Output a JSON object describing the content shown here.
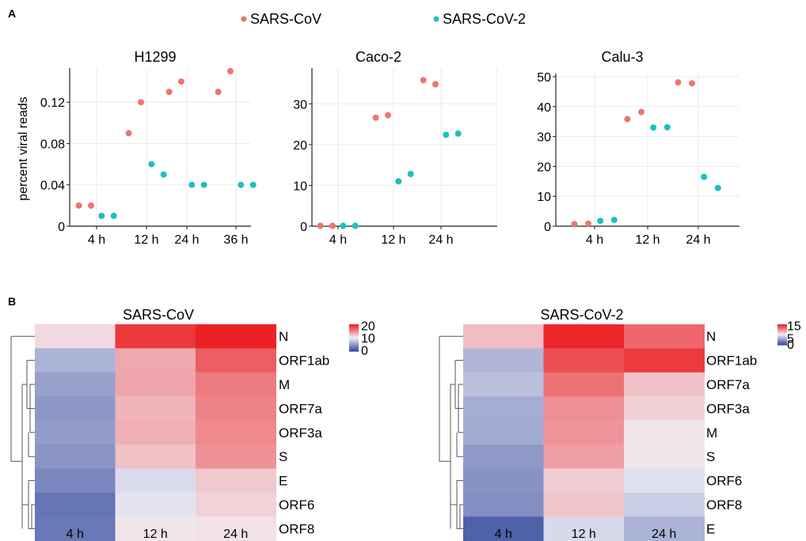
{
  "panel_a": {
    "label": "A"
  },
  "panel_b": {
    "label": "B"
  },
  "legend": [
    {
      "name": "SARS-CoV",
      "color": "#EE7470"
    },
    {
      "name": "SARS-CoV-2",
      "color": "#1FBFC3"
    }
  ],
  "chart_data": [
    {
      "type": "scatter",
      "title": "H1299",
      "ylabel": "percent viral reads",
      "xlabel": "",
      "ylim": [
        0,
        0.15
      ],
      "yticks": [
        0,
        0.04,
        0.08,
        0.12
      ],
      "ytick_labels": [
        "0",
        "0.04",
        "0.08",
        "0.12"
      ],
      "xticks": [
        "4 h",
        "12 h",
        "24 h",
        "36 h"
      ],
      "grid": true,
      "series": [
        {
          "name": "SARS-CoV",
          "color": "#EE7470",
          "points": [
            {
              "group": "4 h",
              "replicate": 1,
              "y": 0.02
            },
            {
              "group": "4 h",
              "replicate": 2,
              "y": 0.02
            },
            {
              "group": "12 h",
              "replicate": 1,
              "y": 0.09
            },
            {
              "group": "12 h",
              "replicate": 2,
              "y": 0.12
            },
            {
              "group": "24 h",
              "replicate": 1,
              "y": 0.13
            },
            {
              "group": "24 h",
              "replicate": 2,
              "y": 0.14
            },
            {
              "group": "36 h",
              "replicate": 1,
              "y": 0.13
            },
            {
              "group": "36 h",
              "replicate": 2,
              "y": 0.15
            }
          ]
        },
        {
          "name": "SARS-CoV-2",
          "color": "#1FBFC3",
          "points": [
            {
              "group": "4 h",
              "replicate": 1,
              "y": 0.01
            },
            {
              "group": "4 h",
              "replicate": 2,
              "y": 0.01
            },
            {
              "group": "12 h",
              "replicate": 1,
              "y": 0.06
            },
            {
              "group": "12 h",
              "replicate": 2,
              "y": 0.05
            },
            {
              "group": "24 h",
              "replicate": 1,
              "y": 0.04
            },
            {
              "group": "24 h",
              "replicate": 2,
              "y": 0.04
            },
            {
              "group": "36 h",
              "replicate": 1,
              "y": 0.04
            },
            {
              "group": "36 h",
              "replicate": 2,
              "y": 0.04
            }
          ]
        }
      ]
    },
    {
      "type": "scatter",
      "title": "Caco-2",
      "ylabel": "",
      "xlabel": "",
      "ylim": [
        0,
        38
      ],
      "yticks": [
        0,
        10,
        20,
        30
      ],
      "ytick_labels": [
        "0",
        "10",
        "20",
        "30"
      ],
      "xticks": [
        "4 h",
        "12 h",
        "24 h"
      ],
      "grid": true,
      "series": [
        {
          "name": "SARS-CoV",
          "color": "#EE7470",
          "points": [
            {
              "group": "4 h",
              "replicate": 1,
              "y": 0.1
            },
            {
              "group": "4 h",
              "replicate": 2,
              "y": 0.1
            },
            {
              "group": "12 h",
              "replicate": 1,
              "y": 26.6
            },
            {
              "group": "12 h",
              "replicate": 2,
              "y": 27.2
            },
            {
              "group": "24 h",
              "replicate": 1,
              "y": 35.8
            },
            {
              "group": "24 h",
              "replicate": 2,
              "y": 34.8
            }
          ]
        },
        {
          "name": "SARS-CoV-2",
          "color": "#1FBFC3",
          "points": [
            {
              "group": "4 h",
              "replicate": 1,
              "y": 0.1
            },
            {
              "group": "4 h",
              "replicate": 2,
              "y": 0.1
            },
            {
              "group": "12 h",
              "replicate": 1,
              "y": 11.0
            },
            {
              "group": "12 h",
              "replicate": 2,
              "y": 12.8
            },
            {
              "group": "24 h",
              "replicate": 1,
              "y": 22.4
            },
            {
              "group": "24 h",
              "replicate": 2,
              "y": 22.7
            }
          ]
        }
      ]
    },
    {
      "type": "scatter",
      "title": "Calu-3",
      "ylabel": "",
      "xlabel": "",
      "ylim": [
        0,
        50
      ],
      "yticks": [
        0,
        10,
        20,
        30,
        40,
        50
      ],
      "ytick_labels": [
        "0",
        "10",
        "20",
        "30",
        "40",
        "50"
      ],
      "xticks": [
        "4 h",
        "12 h",
        "24 h"
      ],
      "grid": true,
      "series": [
        {
          "name": "SARS-CoV",
          "color": "#EE7470",
          "points": [
            {
              "group": "4 h",
              "replicate": 1,
              "y": 0.7
            },
            {
              "group": "4 h",
              "replicate": 2,
              "y": 0.9
            },
            {
              "group": "12 h",
              "replicate": 1,
              "y": 35.8
            },
            {
              "group": "12 h",
              "replicate": 2,
              "y": 38.2
            },
            {
              "group": "24 h",
              "replicate": 1,
              "y": 48.1
            },
            {
              "group": "24 h",
              "replicate": 2,
              "y": 47.8
            }
          ]
        },
        {
          "name": "SARS-CoV-2",
          "color": "#1FBFC3",
          "points": [
            {
              "group": "4 h",
              "replicate": 1,
              "y": 1.8
            },
            {
              "group": "4 h",
              "replicate": 2,
              "y": 2.1
            },
            {
              "group": "12 h",
              "replicate": 1,
              "y": 33.0
            },
            {
              "group": "12 h",
              "replicate": 2,
              "y": 33.1
            },
            {
              "group": "24 h",
              "replicate": 1,
              "y": 16.5
            },
            {
              "group": "24 h",
              "replicate": 2,
              "y": 12.8
            }
          ]
        }
      ]
    },
    {
      "type": "heatmap",
      "title": "SARS-CoV",
      "columns": [
        "4 h",
        "12 h",
        "24 h"
      ],
      "rows": [
        "N",
        "ORF1ab",
        "M",
        "ORF7a",
        "ORF3a",
        "S",
        "E",
        "ORF6",
        "ORF8"
      ],
      "values": [
        [
          11.2,
          19.8,
          21.0
        ],
        [
          5.8,
          13.8,
          17.8
        ],
        [
          4.6,
          14.0,
          16.2
        ],
        [
          4.0,
          13.2,
          15.8
        ],
        [
          4.3,
          13.4,
          15.5
        ],
        [
          3.8,
          12.5,
          15.0
        ],
        [
          2.8,
          8.6,
          12.2
        ],
        [
          1.6,
          9.2,
          11.6
        ],
        [
          1.8,
          10.6,
          10.8
        ]
      ],
      "colorbar": {
        "ticks": [
          0,
          10,
          20
        ],
        "tick_labels": [
          "0",
          "10",
          "20"
        ],
        "min": -1,
        "max": 21,
        "colors": [
          "#3A4FA0",
          "#F1F0F7",
          "#EC2125"
        ]
      },
      "dendrogram": true
    },
    {
      "type": "heatmap",
      "title": "SARS-CoV-2",
      "columns": [
        "4 h",
        "12 h",
        "24 h"
      ],
      "rows": [
        "N",
        "ORF1ab",
        "ORF7a",
        "ORF3a",
        "M",
        "S",
        "ORF6",
        "ORF8",
        "E"
      ],
      "values": [
        [
          9.8,
          15.8,
          13.2
        ],
        [
          4.8,
          14.2,
          15.0
        ],
        [
          5.3,
          12.8,
          9.6
        ],
        [
          4.3,
          11.6,
          9.0
        ],
        [
          4.2,
          11.4,
          8.2
        ],
        [
          3.3,
          11.0,
          8.2
        ],
        [
          3.0,
          9.2,
          7.0
        ],
        [
          2.8,
          9.5,
          6.0
        ],
        [
          0.4,
          6.6,
          4.6
        ]
      ],
      "colorbar": {
        "ticks": [
          0,
          5,
          15
        ],
        "tick_labels": [
          "0",
          "5",
          "15"
        ],
        "min": -0.5,
        "max": 16,
        "colors": [
          "#3A4FA0",
          "#F1F0F7",
          "#EC2125"
        ]
      },
      "dendrogram": true
    }
  ]
}
